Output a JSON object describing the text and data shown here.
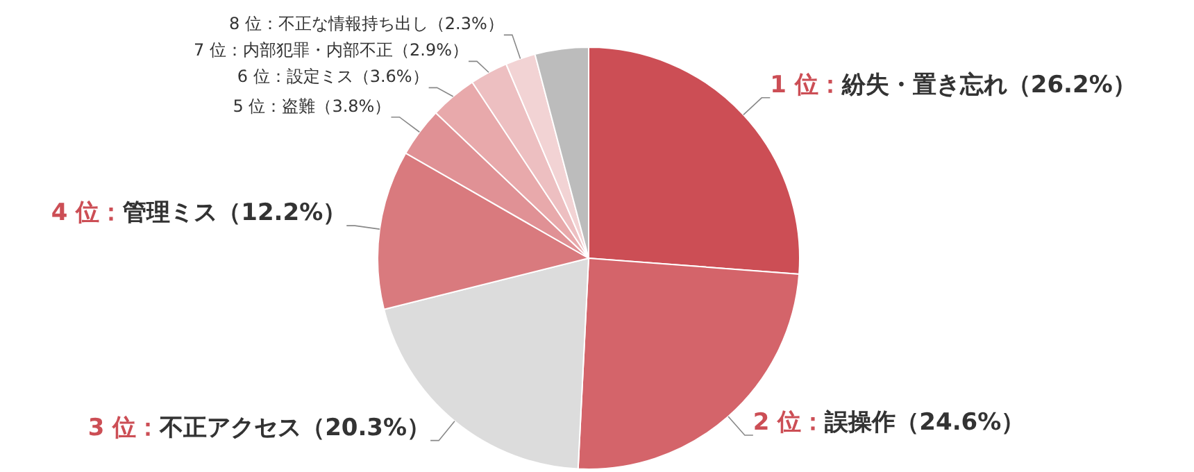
{
  "chart_data": {
    "type": "pie",
    "categories": [
      "1 位：紛失・置き忘れ（26.2%）",
      "2 位：誤操作（24.6%）",
      "3 位：不正アクセス（20.3%）",
      "4 位：管理ミス（12.2%）",
      "5 位：盗難（3.8%）",
      "6 位：設定ミス（3.6%）",
      "7 位：内部犯罪・内部不正（2.9%）",
      "8 位：不正な情報持ち出し（2.3%）",
      null
    ],
    "values": [
      26.2,
      24.6,
      20.3,
      12.2,
      3.8,
      3.6,
      2.9,
      2.3,
      4.1
    ],
    "colors": [
      "#cc4e55",
      "#d4646a",
      "#dcdcdc",
      "#d97a7e",
      "#e09195",
      "#e8a9ab",
      "#edbfc1",
      "#f2d3d4",
      "#bcbcbc"
    ]
  }
}
